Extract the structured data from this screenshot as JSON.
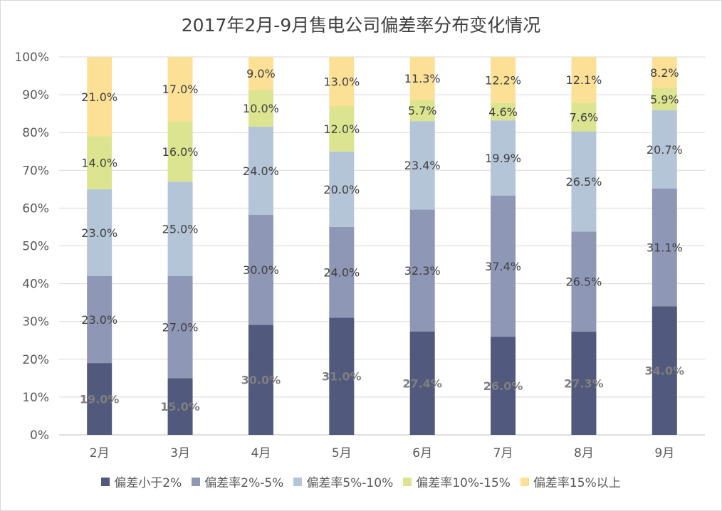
{
  "chart_data": {
    "type": "bar",
    "stacked": true,
    "percent_stacked": true,
    "title": "2017年2月-9月售电公司偏差率分布变化情况",
    "categories": [
      "2月",
      "3月",
      "4月",
      "5月",
      "6月",
      "7月",
      "8月",
      "9月"
    ],
    "ylim": [
      0,
      100
    ],
    "yticks": [
      "0%",
      "10%",
      "20%",
      "30%",
      "40%",
      "50%",
      "60%",
      "70%",
      "80%",
      "90%",
      "100%"
    ],
    "grid": true,
    "legend_position": "bottom",
    "series": [
      {
        "name": "偏差小于2%",
        "color": "#515a7c",
        "label_color": "#7f7f7f",
        "values": [
          19.0,
          15.0,
          30.0,
          31.0,
          27.4,
          26.0,
          27.3,
          34.0
        ],
        "labels": [
          "19.0%",
          "15.0%",
          "30.0%",
          "31.0%",
          "27.4%",
          "26.0%",
          "27.3%",
          "34.0%"
        ]
      },
      {
        "name": "偏差率2%-5%",
        "color": "#8e97b6",
        "label_color": "#404040",
        "values": [
          23.0,
          27.0,
          30.0,
          24.0,
          32.3,
          37.4,
          26.5,
          31.1
        ],
        "labels": [
          "23.0%",
          "27.0%",
          "30.0%",
          "24.0%",
          "32.3%",
          "37.4%",
          "26.5%",
          "31.1%"
        ]
      },
      {
        "name": "偏差率5%-10%",
        "color": "#b4c5d8",
        "label_color": "#404040",
        "values": [
          23.0,
          25.0,
          24.0,
          20.0,
          23.4,
          19.9,
          26.5,
          20.7
        ],
        "labels": [
          "23.0%",
          "25.0%",
          "24.0%",
          "20.0%",
          "23.4%",
          "19.9%",
          "26.5%",
          "20.7%"
        ]
      },
      {
        "name": "偏差率10%-15%",
        "color": "#dde48f",
        "label_color": "#404040",
        "values": [
          14.0,
          16.0,
          10.0,
          12.0,
          5.7,
          4.6,
          7.6,
          5.9
        ],
        "labels": [
          "14.0%",
          "16.0%",
          "10.0%",
          "12.0%",
          "5.7%",
          "4.6%",
          "7.6%",
          "5.9%"
        ]
      },
      {
        "name": "偏差率15%以上",
        "color": "#fbe096",
        "label_color": "#404040",
        "values": [
          21.0,
          17.0,
          9.0,
          13.0,
          11.3,
          12.2,
          12.1,
          8.2
        ],
        "labels": [
          "21.0%",
          "17.0%",
          "9.0%",
          "13.0%",
          "11.3%",
          "12.2%",
          "12.1%",
          "8.2%"
        ]
      }
    ]
  }
}
